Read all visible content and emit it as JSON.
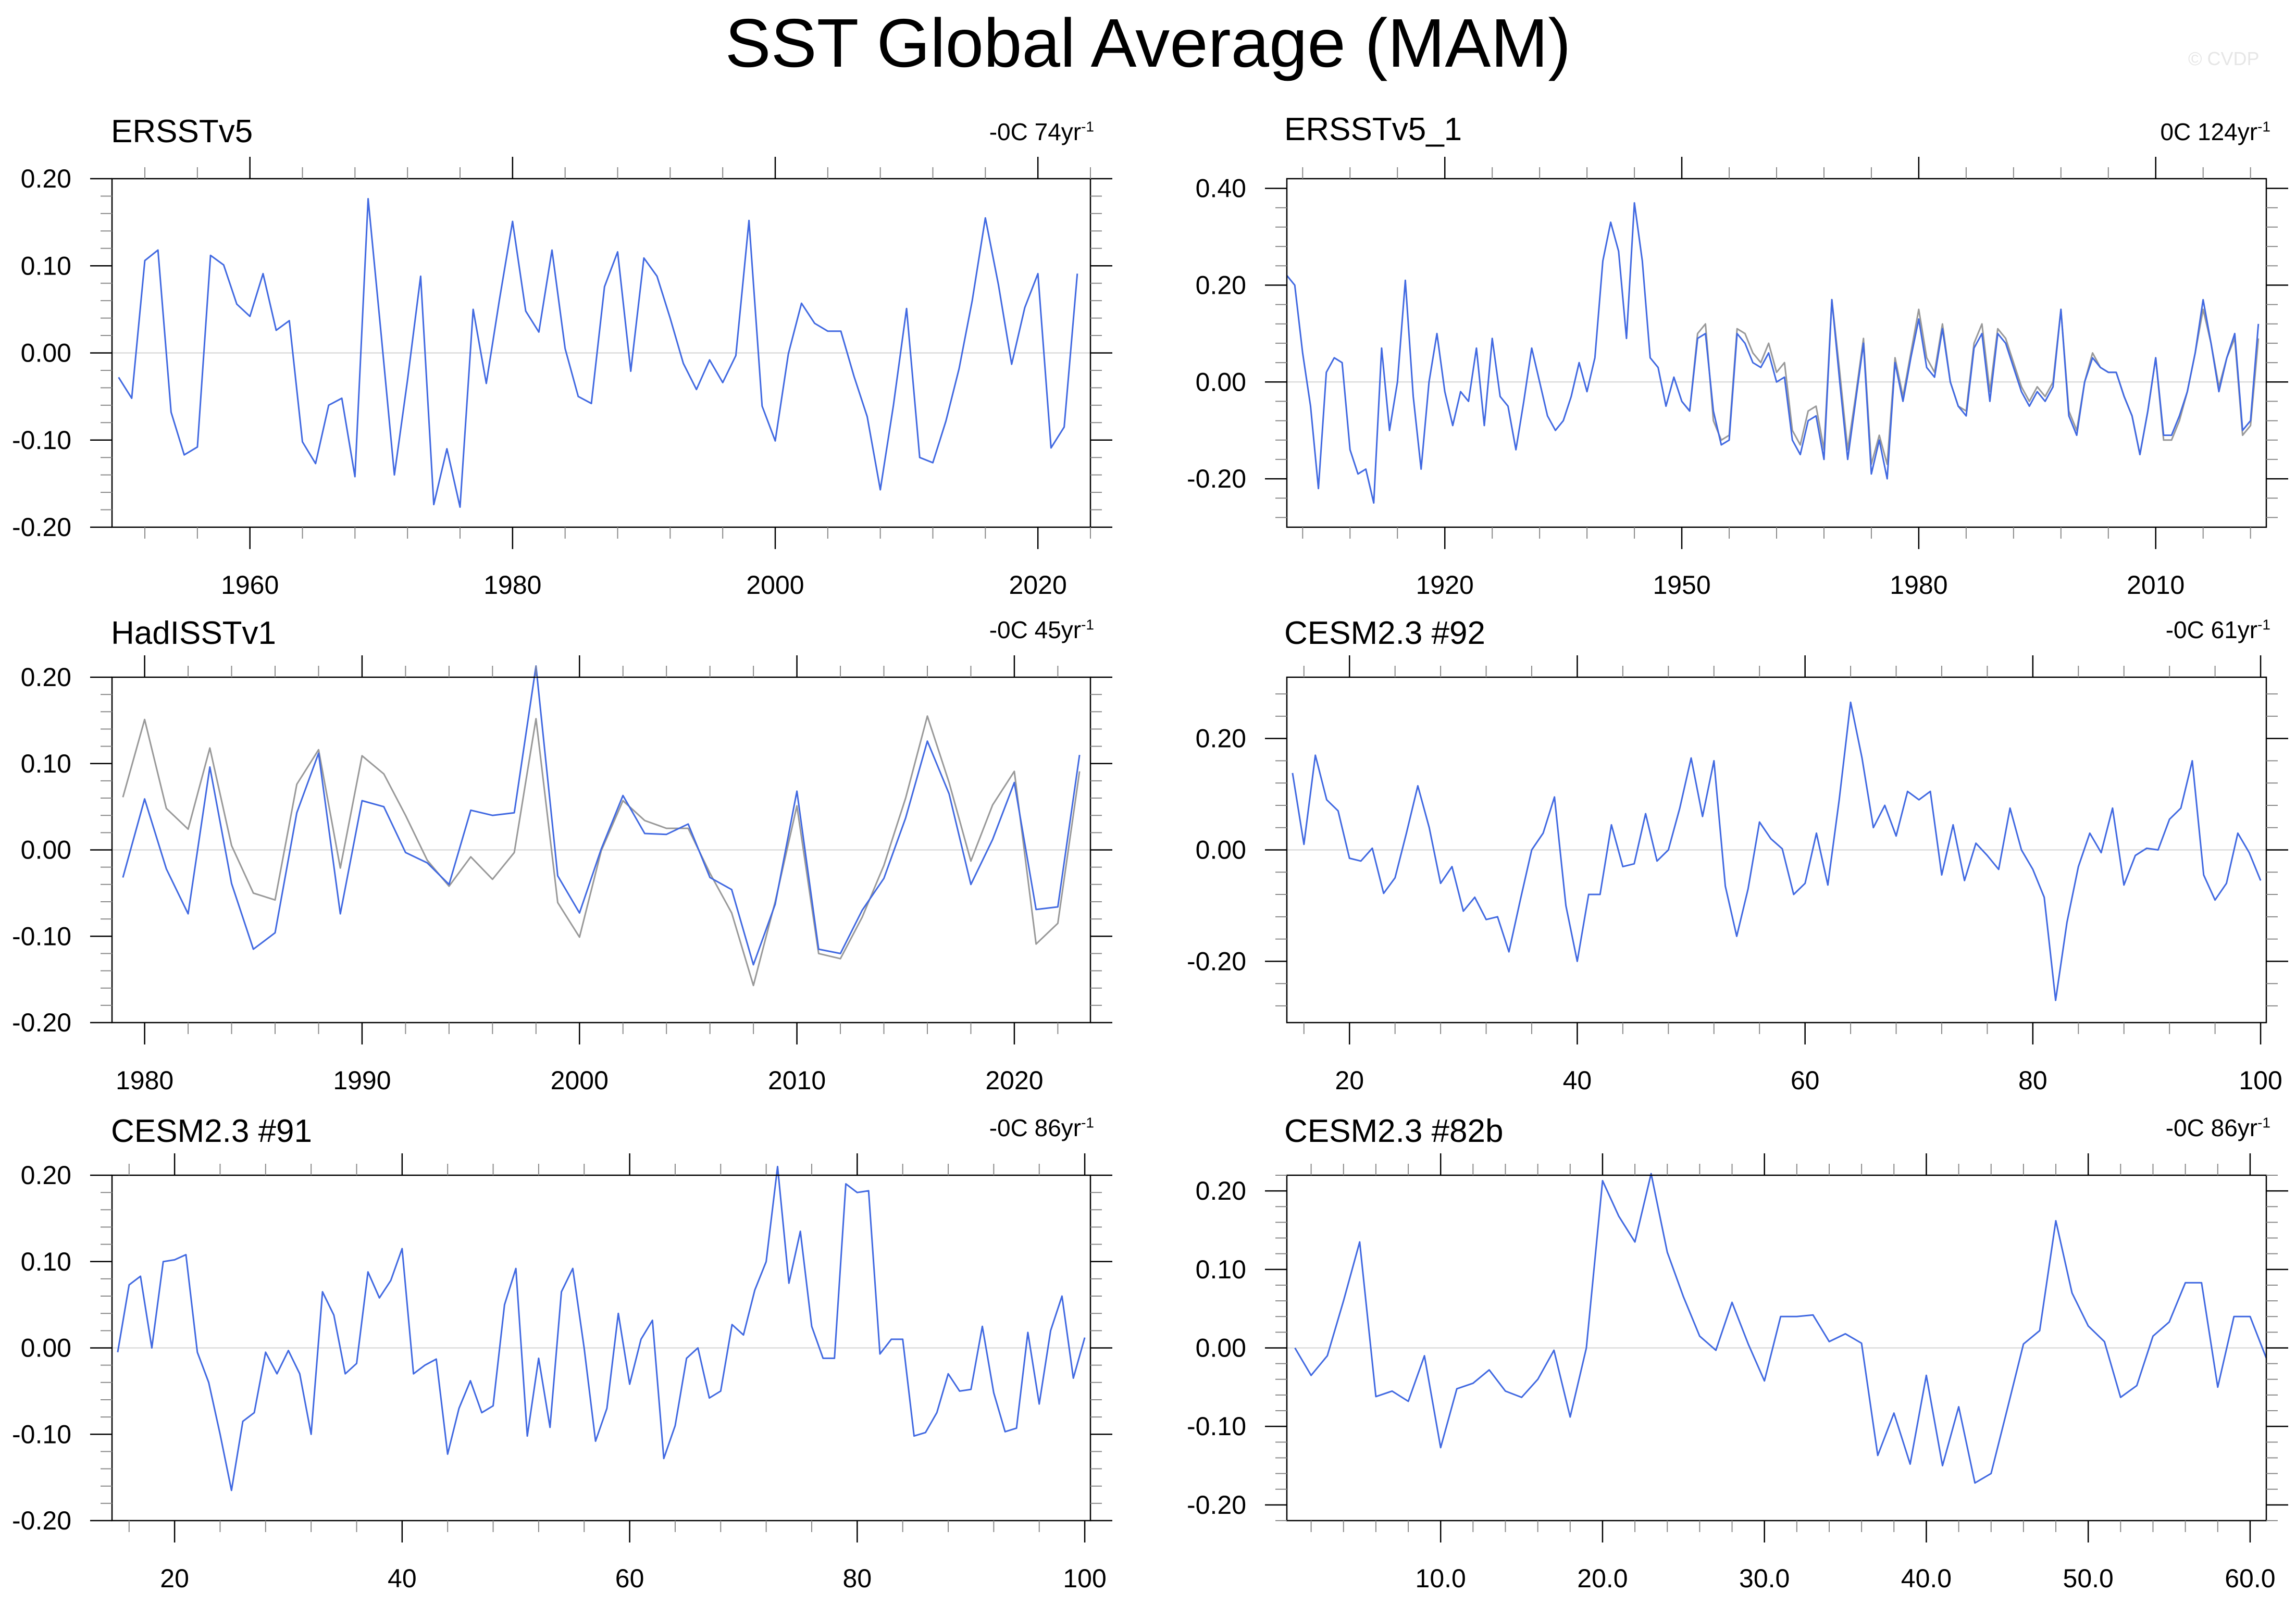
{
  "title": "SST Global Average (MAM)",
  "watermark": "© CVDP",
  "colors": {
    "primary": "#4169e1",
    "secondary": "#999999",
    "zero_line": "#d3d3d3",
    "axis": "#000000"
  },
  "chart_data": [
    {
      "type": "line",
      "name": "ERSSTv5",
      "trend_value": "-0C 74yr",
      "trend_exp": "-1",
      "xlim": [
        1949.5,
        2024
      ],
      "ylim": [
        -0.2,
        0.2
      ],
      "yticks": [
        -0.2,
        -0.1,
        0.0,
        0.1,
        0.2
      ],
      "yticklabels": [
        "-0.20",
        "-0.10",
        "0.00",
        "0.10",
        "0.20"
      ],
      "xticks": [
        1960,
        1980,
        2000,
        2020
      ],
      "xticklabels": [
        "1960",
        "1980",
        "2000",
        "2020"
      ],
      "x_start": 1950,
      "series": [
        {
          "color": "primary",
          "values": [
            -0.028,
            -0.052,
            0.106,
            0.118,
            -0.068,
            -0.117,
            -0.108,
            0.112,
            0.101,
            0.056,
            0.042,
            0.091,
            0.026,
            0.037,
            -0.102,
            -0.127,
            -0.06,
            -0.052,
            -0.142,
            0.177,
            0.02,
            -0.14,
            -0.031,
            0.088,
            -0.174,
            -0.11,
            -0.177,
            0.05,
            -0.035,
            0.061,
            0.151,
            0.048,
            0.024,
            0.118,
            0.005,
            -0.05,
            -0.058,
            0.076,
            0.116,
            -0.021,
            0.109,
            0.088,
            0.04,
            -0.012,
            -0.042,
            -0.008,
            -0.034,
            -0.003,
            0.152,
            -0.061,
            -0.101,
            -0.001,
            0.057,
            0.034,
            0.025,
            0.025,
            -0.027,
            -0.073,
            -0.157,
            -0.06,
            0.051,
            -0.12,
            -0.126,
            -0.078,
            -0.018,
            0.06,
            0.155,
            0.078,
            -0.013,
            0.052,
            0.091,
            -0.109,
            -0.085,
            0.091
          ]
        }
      ]
    },
    {
      "type": "line",
      "name": "ERSSTv5_1",
      "trend_value": "0C 124yr",
      "trend_exp": "-1",
      "xlim": [
        1900,
        2024
      ],
      "ylim": [
        -0.3,
        0.42
      ],
      "yticks": [
        -0.2,
        0.0,
        0.2,
        0.4
      ],
      "yticklabels": [
        "-0.20",
        "0.00",
        "0.20",
        "0.40"
      ],
      "xticks": [
        1920,
        1950,
        1980,
        2010
      ],
      "xticklabels": [
        "1920",
        "1950",
        "1980",
        "2010"
      ],
      "x_start": 1900,
      "series": [
        {
          "color": "secondary",
          "x_start": 1950,
          "values": [
            -0.04,
            -0.06,
            0.1,
            0.12,
            -0.08,
            -0.12,
            -0.11,
            0.11,
            0.1,
            0.06,
            0.04,
            0.08,
            0.02,
            0.04,
            -0.1,
            -0.13,
            -0.06,
            -0.05,
            -0.14,
            0.17,
            0.02,
            -0.14,
            -0.03,
            0.09,
            -0.17,
            -0.11,
            -0.17,
            0.05,
            -0.03,
            0.06,
            0.15,
            0.05,
            0.02,
            0.12,
            0.0,
            -0.05,
            -0.06,
            0.08,
            0.12,
            -0.02,
            0.11,
            0.09,
            0.04,
            -0.01,
            -0.04,
            -0.01,
            -0.03,
            0.0,
            0.15,
            -0.06,
            -0.1,
            0.0,
            0.06,
            0.03,
            0.02,
            0.02,
            -0.03,
            -0.07,
            -0.15,
            -0.06,
            0.05,
            -0.12,
            -0.12,
            -0.08,
            -0.02,
            0.06,
            0.15,
            0.08,
            -0.01,
            0.05,
            0.09,
            -0.11,
            -0.09,
            0.09
          ]
        },
        {
          "color": "primary",
          "values": [
            0.22,
            0.2,
            0.06,
            -0.05,
            -0.22,
            0.02,
            0.05,
            0.04,
            -0.14,
            -0.19,
            -0.18,
            -0.25,
            0.07,
            -0.1,
            0.0,
            0.21,
            -0.03,
            -0.18,
            0.0,
            0.1,
            -0.02,
            -0.09,
            -0.02,
            -0.04,
            0.07,
            -0.09,
            0.09,
            -0.03,
            -0.05,
            -0.14,
            -0.04,
            0.07,
            0.0,
            -0.07,
            -0.1,
            -0.08,
            -0.03,
            0.04,
            -0.02,
            0.05,
            0.25,
            0.33,
            0.27,
            0.09,
            0.37,
            0.25,
            0.05,
            0.03,
            -0.05,
            0.01,
            -0.04,
            -0.06,
            0.09,
            0.1,
            -0.06,
            -0.13,
            -0.12,
            0.1,
            0.08,
            0.04,
            0.03,
            0.06,
            0.0,
            0.01,
            -0.12,
            -0.15,
            -0.08,
            -0.07,
            -0.16,
            0.17,
            0.0,
            -0.16,
            -0.04,
            0.08,
            -0.19,
            -0.12,
            -0.2,
            0.04,
            -0.04,
            0.05,
            0.13,
            0.03,
            0.01,
            0.11,
            0.0,
            -0.05,
            -0.07,
            0.07,
            0.1,
            -0.04,
            0.1,
            0.08,
            0.03,
            -0.02,
            -0.05,
            -0.02,
            -0.04,
            -0.01,
            0.15,
            -0.07,
            -0.11,
            0.0,
            0.05,
            0.03,
            0.02,
            0.02,
            -0.03,
            -0.07,
            -0.15,
            -0.06,
            0.05,
            -0.11,
            -0.11,
            -0.07,
            -0.02,
            0.06,
            0.17,
            0.08,
            -0.02,
            0.05,
            0.1,
            -0.1,
            -0.08,
            0.12
          ]
        }
      ]
    },
    {
      "type": "line",
      "name": "HadISSTv1",
      "trend_value": "-0C 45yr",
      "trend_exp": "-1",
      "xlim": [
        1978.5,
        2023.5
      ],
      "ylim": [
        -0.2,
        0.2
      ],
      "yticks": [
        -0.2,
        -0.1,
        0.0,
        0.1,
        0.2
      ],
      "yticklabels": [
        "-0.20",
        "-0.10",
        "0.00",
        "0.10",
        "0.20"
      ],
      "xticks": [
        1980,
        1990,
        2000,
        2010,
        2020
      ],
      "xticklabels": [
        "1980",
        "1990",
        "2000",
        "2010",
        "2020"
      ],
      "x_start": 1979,
      "series": [
        {
          "color": "secondary",
          "values": [
            0.061,
            0.151,
            0.048,
            0.024,
            0.118,
            0.005,
            -0.05,
            -0.058,
            0.076,
            0.116,
            -0.021,
            0.109,
            0.088,
            0.04,
            -0.012,
            -0.042,
            -0.008,
            -0.034,
            -0.003,
            0.152,
            -0.061,
            -0.101,
            -0.001,
            0.057,
            0.034,
            0.025,
            0.025,
            -0.027,
            -0.073,
            -0.157,
            -0.06,
            0.051,
            -0.12,
            -0.126,
            -0.078,
            -0.018,
            0.06,
            0.155,
            0.078,
            -0.013,
            0.052,
            0.091,
            -0.109,
            -0.085,
            0.091
          ]
        },
        {
          "color": "primary",
          "values": [
            -0.032,
            0.059,
            -0.022,
            -0.074,
            0.096,
            -0.039,
            -0.115,
            -0.096,
            0.043,
            0.112,
            -0.074,
            0.057,
            0.05,
            -0.003,
            -0.015,
            -0.04,
            0.046,
            0.04,
            0.043,
            0.213,
            -0.03,
            -0.073,
            0.001,
            0.063,
            0.019,
            0.018,
            0.03,
            -0.032,
            -0.046,
            -0.133,
            -0.063,
            0.068,
            -0.115,
            -0.12,
            -0.07,
            -0.033,
            0.037,
            0.126,
            0.065,
            -0.04,
            0.012,
            0.078,
            -0.069,
            -0.066,
            0.11
          ]
        }
      ]
    },
    {
      "type": "line",
      "name": "CESM2.3 #92",
      "trend_value": "-0C 61yr",
      "trend_exp": "-1",
      "xlim": [
        14.5,
        100.5
      ],
      "ylim": [
        -0.31,
        0.31
      ],
      "yticks": [
        -0.2,
        0.0,
        0.2
      ],
      "yticklabels": [
        "-0.20",
        "0.00",
        "0.20"
      ],
      "xticks": [
        20,
        40,
        60,
        80,
        100
      ],
      "xticklabels": [
        "20",
        "40",
        "60",
        "80",
        "100"
      ],
      "x_start": 15,
      "series": [
        {
          "color": "primary",
          "values": [
            0.138,
            0.01,
            0.17,
            0.09,
            0.07,
            -0.015,
            -0.02,
            0.003,
            -0.078,
            -0.05,
            0.03,
            0.115,
            0.04,
            -0.06,
            -0.03,
            -0.11,
            -0.085,
            -0.125,
            -0.12,
            -0.183,
            -0.09,
            0.0,
            0.03,
            0.095,
            -0.1,
            -0.2,
            -0.08,
            -0.08,
            0.045,
            -0.03,
            -0.025,
            0.065,
            -0.02,
            0.0,
            0.075,
            0.165,
            0.06,
            0.16,
            -0.065,
            -0.155,
            -0.07,
            0.05,
            0.02,
            0.002,
            -0.08,
            -0.06,
            0.03,
            -0.063,
            0.09,
            0.265,
            0.165,
            0.04,
            0.08,
            0.025,
            0.105,
            0.09,
            0.105,
            -0.045,
            0.045,
            -0.055,
            0.012,
            -0.01,
            -0.035,
            0.075,
            0.0,
            -0.035,
            -0.085,
            -0.27,
            -0.13,
            -0.03,
            0.03,
            -0.005,
            0.075,
            -0.063,
            -0.01,
            0.003,
            0.0,
            0.055,
            0.075,
            0.16,
            -0.045,
            -0.09,
            -0.06,
            0.03,
            -0.005,
            -0.055
          ]
        }
      ]
    },
    {
      "type": "line",
      "name": "CESM2.3 #91",
      "trend_value": "-0C 86yr",
      "trend_exp": "-1",
      "xlim": [
        14.5,
        100.5
      ],
      "ylim": [
        -0.2,
        0.2
      ],
      "yticks": [
        -0.2,
        -0.1,
        0.0,
        0.1,
        0.2
      ],
      "yticklabels": [
        "-0.20",
        "-0.10",
        "0.00",
        "0.10",
        "0.20"
      ],
      "xticks": [
        20,
        40,
        60,
        80,
        100
      ],
      "xticklabels": [
        "20",
        "40",
        "60",
        "80",
        "100"
      ],
      "x_start": 15,
      "series": [
        {
          "color": "primary",
          "values": [
            -0.005,
            0.073,
            0.083,
            0.0,
            0.1,
            0.102,
            0.108,
            -0.005,
            -0.04,
            -0.1,
            -0.165,
            -0.085,
            -0.075,
            -0.005,
            -0.03,
            -0.003,
            -0.03,
            -0.1,
            0.065,
            0.038,
            -0.03,
            -0.018,
            0.088,
            0.058,
            0.078,
            0.115,
            -0.03,
            -0.02,
            -0.013,
            -0.123,
            -0.07,
            -0.038,
            -0.075,
            -0.067,
            0.05,
            0.092,
            -0.102,
            -0.012,
            -0.092,
            0.065,
            0.092,
            0.0,
            -0.108,
            -0.07,
            0.04,
            -0.042,
            0.01,
            0.032,
            -0.128,
            -0.09,
            -0.012,
            0.0,
            -0.058,
            -0.05,
            0.027,
            0.015,
            0.067,
            0.1,
            0.21,
            0.075,
            0.135,
            0.025,
            -0.012,
            -0.012,
            0.19,
            0.18,
            0.182,
            -0.007,
            0.01,
            0.01,
            -0.102,
            -0.098,
            -0.075,
            -0.03,
            -0.05,
            -0.048,
            0.025,
            -0.052,
            -0.097,
            -0.093,
            0.018,
            -0.065,
            0.02,
            0.06,
            -0.035,
            0.012
          ]
        }
      ]
    },
    {
      "type": "line",
      "name": "CESM2.3 #82b",
      "trend_value": "-0C 86yr",
      "trend_exp": "-1",
      "xlim": [
        0.5,
        61
      ],
      "ylim": [
        -0.22,
        0.22
      ],
      "yticks": [
        -0.2,
        -0.1,
        0.0,
        0.1,
        0.2
      ],
      "yticklabels": [
        "-0.20",
        "-0.10",
        "0.00",
        "0.10",
        "0.20"
      ],
      "xticks": [
        10,
        20,
        30,
        40,
        50,
        60
      ],
      "xticklabels": [
        "10.0",
        "20.0",
        "30.0",
        "40.0",
        "50.0",
        "60.0"
      ],
      "x_start": 1,
      "series": [
        {
          "color": "primary",
          "values": [
            0.0,
            -0.035,
            -0.01,
            0.06,
            0.135,
            -0.062,
            -0.055,
            -0.068,
            -0.01,
            -0.127,
            -0.052,
            -0.045,
            -0.028,
            -0.055,
            -0.063,
            -0.04,
            -0.003,
            -0.088,
            0.0,
            0.213,
            0.168,
            0.135,
            0.222,
            0.122,
            0.065,
            0.015,
            -0.003,
            0.058,
            0.005,
            -0.042,
            0.04,
            0.04,
            0.042,
            0.008,
            0.018,
            0.006,
            -0.137,
            -0.083,
            -0.148,
            -0.035,
            -0.15,
            -0.075,
            -0.172,
            -0.16,
            -0.078,
            0.005,
            0.022,
            0.162,
            0.07,
            0.028,
            0.008,
            -0.063,
            -0.048,
            0.015,
            0.033,
            0.083,
            0.083,
            -0.05,
            0.04,
            0.04,
            -0.013
          ]
        }
      ]
    }
  ]
}
